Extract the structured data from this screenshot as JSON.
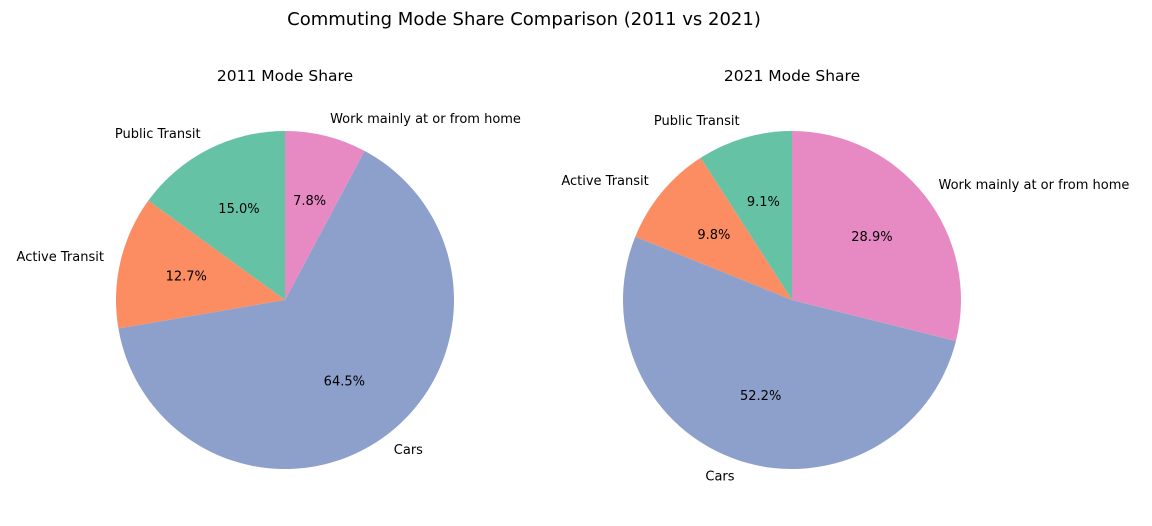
{
  "title": "Commuting Mode Share Comparison (2011 vs 2021)",
  "colors": {
    "Public Transit": "#66c2a5",
    "Active Transit": "#fc8d62",
    "Cars": "#8da0cb",
    "Work mainly at or from home": "#e78ac3"
  },
  "chart_data": [
    {
      "type": "pie",
      "title": "2011 Mode Share",
      "categories": [
        "Public Transit",
        "Active Transit",
        "Cars",
        "Work mainly at or from home"
      ],
      "values": [
        15.0,
        12.7,
        64.5,
        7.8
      ],
      "value_labels": [
        "15.0%",
        "12.7%",
        "64.5%",
        "7.8%"
      ],
      "start_angle_deg": 90,
      "direction": "counterclockwise"
    },
    {
      "type": "pie",
      "title": "2021 Mode Share",
      "categories": [
        "Public Transit",
        "Active Transit",
        "Cars",
        "Work mainly at or from home"
      ],
      "values": [
        9.1,
        9.8,
        52.2,
        28.9
      ],
      "value_labels": [
        "9.1%",
        "9.8%",
        "52.2%",
        "28.9%"
      ],
      "start_angle_deg": 90,
      "direction": "counterclockwise"
    }
  ]
}
